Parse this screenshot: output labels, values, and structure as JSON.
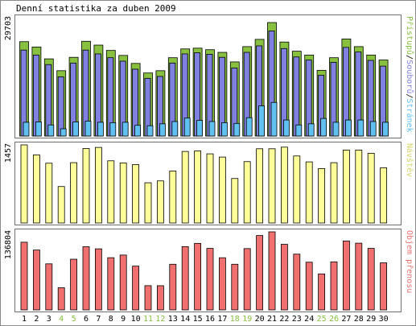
{
  "chart_data": {
    "type": "bar",
    "title": "Denní statistika za duben 2009",
    "categories": [
      "1",
      "2",
      "3",
      "4",
      "5",
      "6",
      "7",
      "8",
      "9",
      "10",
      "11",
      "12",
      "13",
      "14",
      "15",
      "16",
      "17",
      "18",
      "19",
      "20",
      "21",
      "22",
      "23",
      "24",
      "25",
      "26",
      "27",
      "28",
      "29",
      "30"
    ],
    "weekend_days": [
      "4",
      "5",
      "11",
      "12",
      "18",
      "19",
      "25",
      "26"
    ],
    "panels": [
      {
        "name": "hits",
        "axis_max_label": "29703",
        "ylim": [
          0,
          29703
        ],
        "legend": [
          "Stránek",
          "Souborů",
          "Přístupů"
        ],
        "series": [
          {
            "name": "Přístupů",
            "color": "#88c040",
            "values": [
              24700,
              23300,
              20200,
              17100,
              20600,
              24800,
              23800,
              22400,
              21100,
              19000,
              16500,
              17100,
              20500,
              22800,
              23000,
              22600,
              21900,
              19400,
              23400,
              25300,
              29700,
              24600,
              22200,
              21200,
              17200,
              20500,
              25400,
              23400,
              21200,
              19900
            ]
          },
          {
            "name": "Souborů",
            "color": "#8080e0",
            "values": [
              22500,
              21200,
              18700,
              15500,
              19100,
              22500,
              21500,
              20500,
              19600,
              17500,
              15100,
              15600,
              19100,
              21500,
              21800,
              21400,
              20600,
              17800,
              21900,
              23600,
              27500,
              22900,
              20700,
              19900,
              15900,
              19300,
              23200,
              22000,
              19800,
              18300
            ]
          },
          {
            "name": "Stránek",
            "color": "#60c0f0",
            "values": [
              3600,
              3700,
              2900,
              1900,
              3700,
              3900,
              3600,
              3500,
              3600,
              2800,
              2700,
              3200,
              3800,
              4700,
              4100,
              3800,
              3500,
              3300,
              4800,
              7900,
              8800,
              4200,
              2900,
              3200,
              4600,
              3600,
              4200,
              4200,
              3800,
              3600
            ]
          }
        ]
      },
      {
        "name": "visits",
        "axis_max_label": "1457",
        "ylim": [
          0,
          1457
        ],
        "legend": [
          "Návštěv"
        ],
        "series": [
          {
            "name": "Návštěv",
            "color": "#ffff99",
            "values": [
              1457,
              1270,
              1115,
              680,
              1125,
              1390,
              1410,
              1160,
              1120,
              1090,
              750,
              785,
              970,
              1335,
              1345,
              1290,
              1230,
              830,
              1145,
              1385,
              1385,
              1415,
              1250,
              1140,
              1015,
              1125,
              1360,
              1360,
              1300,
              1030
            ]
          }
        ]
      },
      {
        "name": "traffic",
        "axis_max_label": "136804",
        "ylim": [
          0,
          136804
        ],
        "legend": [
          "Objem přenosu"
        ],
        "series": [
          {
            "name": "Objem přenosu",
            "color": "#f07070",
            "values": [
              118600,
              104900,
              80700,
              38900,
              88800,
              110700,
              107000,
              91500,
              96100,
              76700,
              42500,
              42400,
              80000,
              110800,
              116600,
              107800,
              91400,
              80000,
              107400,
              130300,
              136800,
              114900,
              97700,
              83600,
              63100,
              84200,
              120800,
              116900,
              107800,
              82500
            ]
          }
        ]
      }
    ]
  }
}
